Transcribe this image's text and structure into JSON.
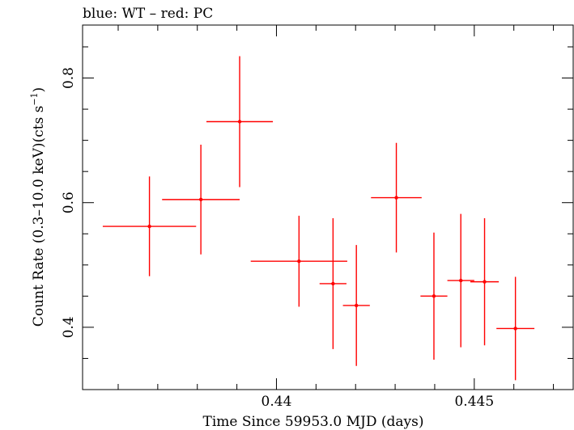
{
  "chart_data": {
    "type": "scatter",
    "title": "blue: WT – red: PC",
    "xlabel": "Time Since 59953.0 MJD (days)",
    "ylabel_main": "Count Rate (0.3–10.0 keV)(cts s",
    "ylabel_sup": "−1",
    "ylabel_close": ")",
    "xlim": [
      0.4351,
      0.4475
    ],
    "ylim": [
      0.3,
      0.885
    ],
    "x_major_ticks": [
      0.44,
      0.445
    ],
    "x_tick_labels": [
      "0.44",
      "0.445"
    ],
    "y_major_ticks": [
      0.4,
      0.6,
      0.8
    ],
    "y_tick_labels": [
      "0.4",
      "0.6",
      "0.8"
    ],
    "grid": false,
    "series": [
      {
        "color": "#ff0000",
        "points": [
          {
            "x": 0.43679,
            "xerr": 0.00118,
            "y": 0.562,
            "yerr": 0.08
          },
          {
            "x": 0.43809,
            "xerr": 0.00098,
            "y": 0.605,
            "yerr": 0.088
          },
          {
            "x": 0.43907,
            "xerr": 0.00084,
            "y": 0.73,
            "yerr": 0.105
          },
          {
            "x": 0.44057,
            "xerr": 0.00122,
            "y": 0.506,
            "yerr": 0.073
          },
          {
            "x": 0.44143,
            "xerr": 0.00034,
            "y": 0.47,
            "yerr": 0.105
          },
          {
            "x": 0.44202,
            "xerr": 0.00034,
            "y": 0.435,
            "yerr": 0.097
          },
          {
            "x": 0.44303,
            "xerr": 0.00064,
            "y": 0.608,
            "yerr": 0.088
          },
          {
            "x": 0.44398,
            "xerr": 0.00034,
            "y": 0.45,
            "yerr": 0.102
          },
          {
            "x": 0.44466,
            "xerr": 0.00034,
            "y": 0.475,
            "yerr": 0.107
          },
          {
            "x": 0.44526,
            "xerr": 0.00036,
            "y": 0.473,
            "yerr": 0.102
          },
          {
            "x": 0.44604,
            "xerr": 0.00048,
            "y": 0.398,
            "yerr": 0.083
          }
        ]
      }
    ]
  }
}
